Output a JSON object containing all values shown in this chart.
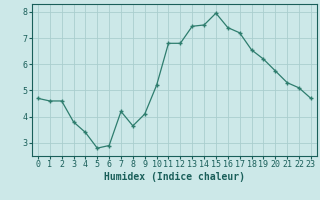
{
  "x": [
    0,
    1,
    2,
    3,
    4,
    5,
    6,
    7,
    8,
    9,
    10,
    11,
    12,
    13,
    14,
    15,
    16,
    17,
    18,
    19,
    20,
    21,
    22,
    23
  ],
  "y": [
    4.7,
    4.6,
    4.6,
    3.8,
    3.4,
    2.8,
    2.9,
    4.2,
    3.65,
    4.1,
    5.2,
    6.8,
    6.8,
    7.45,
    7.5,
    7.95,
    7.4,
    7.2,
    6.55,
    6.2,
    5.75,
    5.3,
    5.1,
    4.7
  ],
  "line_color": "#2e7d6e",
  "marker": "+",
  "marker_size": 3,
  "bg_color": "#cce8e8",
  "grid_color": "#aacece",
  "xlabel": "Humidex (Indice chaleur)",
  "xlim": [
    -0.5,
    23.5
  ],
  "ylim": [
    2.5,
    8.3
  ],
  "yticks": [
    3,
    4,
    5,
    6,
    7,
    8
  ],
  "xticks": [
    0,
    1,
    2,
    3,
    4,
    5,
    6,
    7,
    8,
    9,
    10,
    11,
    12,
    13,
    14,
    15,
    16,
    17,
    18,
    19,
    20,
    21,
    22,
    23
  ],
  "xlabel_color": "#1a5f5a",
  "tick_color": "#1a5f5a",
  "axis_color": "#1a5f5a",
  "label_fontsize": 7,
  "tick_fontsize": 6
}
